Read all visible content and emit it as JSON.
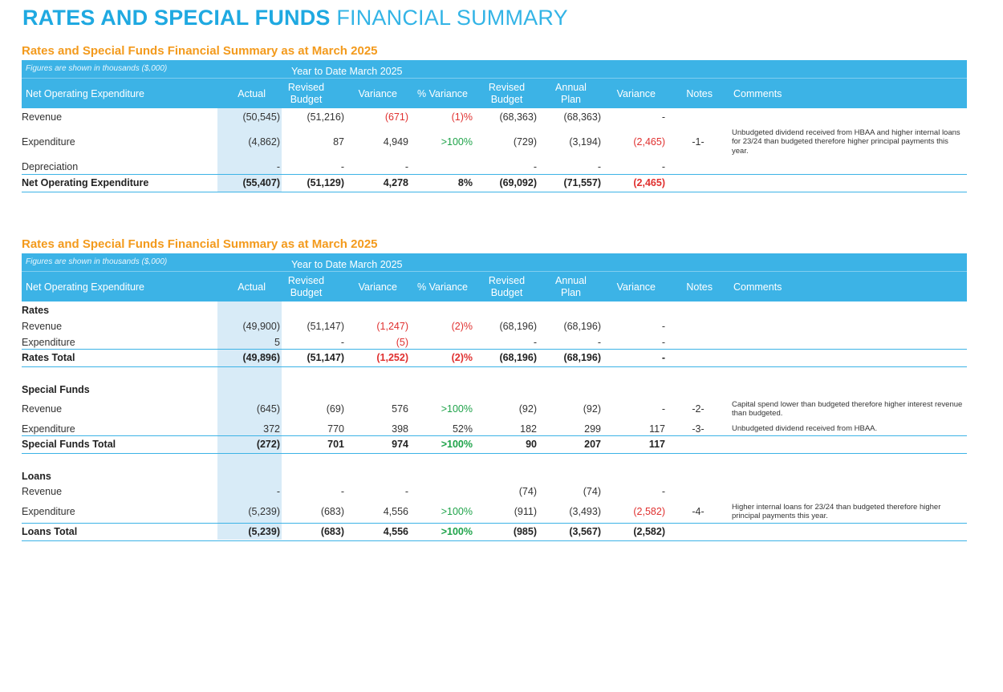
{
  "page_title": {
    "bold": "RATES AND SPECIAL FUNDS",
    "light": "FINANCIAL SUMMARY"
  },
  "table_header": {
    "note": "Figures are shown in thousands ($,000)",
    "ytd": "Year to Date March 2025",
    "net_op": "Net Operating Expenditure",
    "actual": "Actual",
    "revised_budget_1": "Revised",
    "revised_budget_2": "Budget",
    "variance": "Variance",
    "pct_variance": "% Variance",
    "revised_budget_b1": "Revised",
    "revised_budget_b2": "Budget",
    "annual_plan_1": "Annual",
    "annual_plan_2": "Plan",
    "variance2": "Variance",
    "notes": "Notes",
    "comments": "Comments"
  },
  "colors": {
    "accent": "#3cb3e6",
    "title_orange": "#f39a1c",
    "negative": "#e0302f",
    "positive": "#1fa34a",
    "shade": "#d8ebf7"
  },
  "table1": {
    "title": "Rates and Special Funds Financial Summary as at March 2025",
    "rows": [
      {
        "label": "Revenue",
        "actual": "(50,545)",
        "rb": "(51,216)",
        "var": "(671)",
        "pct": "(1)%",
        "rb2": "(68,363)",
        "ap": "(68,363)",
        "var2": "-",
        "notes": "",
        "comment": ""
      },
      {
        "label": "Expenditure",
        "actual": "(4,862)",
        "rb": "87",
        "var": "4,949",
        "pct": ">100%",
        "rb2": "(729)",
        "ap": "(3,194)",
        "var2": "(2,465)",
        "notes": "-1-",
        "comment": "Unbudgeted dividend received from HBAA and higher internal loans for 23/24 than budgeted therefore higher principal payments this year."
      },
      {
        "label": "Depreciation",
        "actual": "-",
        "rb": "-",
        "var": "-",
        "pct": "",
        "rb2": "-",
        "ap": "-",
        "var2": "-",
        "notes": "",
        "comment": ""
      },
      {
        "label": "Net Operating Expenditure",
        "actual": "(55,407)",
        "rb": "(51,129)",
        "var": "4,278",
        "pct": "8%",
        "rb2": "(69,092)",
        "ap": "(71,557)",
        "var2": "(2,465)",
        "notes": "",
        "comment": ""
      }
    ]
  },
  "table2": {
    "title": "Rates and Special Funds Financial Summary as at March 2025",
    "rows": [
      {
        "label": "Rates",
        "actual": "",
        "rb": "",
        "var": "",
        "pct": "",
        "rb2": "",
        "ap": "",
        "var2": "",
        "notes": "",
        "comment": ""
      },
      {
        "label": "Revenue",
        "actual": "(49,900)",
        "rb": "(51,147)",
        "var": "(1,247)",
        "pct": "(2)%",
        "rb2": "(68,196)",
        "ap": "(68,196)",
        "var2": "-",
        "notes": "",
        "comment": ""
      },
      {
        "label": "Expenditure",
        "actual": "5",
        "rb": "-",
        "var": "(5)",
        "pct": "",
        "rb2": "-",
        "ap": "-",
        "var2": "-",
        "notes": "",
        "comment": ""
      },
      {
        "label": "Rates Total",
        "actual": "(49,896)",
        "rb": "(51,147)",
        "var": "(1,252)",
        "pct": "(2)%",
        "rb2": "(68,196)",
        "ap": "(68,196)",
        "var2": "-",
        "notes": "",
        "comment": ""
      },
      {
        "label": "Special Funds",
        "actual": "",
        "rb": "",
        "var": "",
        "pct": "",
        "rb2": "",
        "ap": "",
        "var2": "",
        "notes": "",
        "comment": ""
      },
      {
        "label": "Revenue",
        "actual": "(645)",
        "rb": "(69)",
        "var": "576",
        "pct": ">100%",
        "rb2": "(92)",
        "ap": "(92)",
        "var2": "-",
        "notes": "-2-",
        "comment": "Capital spend lower than budgeted therefore higher interest revenue than budgeted."
      },
      {
        "label": "Expenditure",
        "actual": "372",
        "rb": "770",
        "var": "398",
        "pct": "52%",
        "rb2": "182",
        "ap": "299",
        "var2": "117",
        "notes": "-3-",
        "comment": "Unbudgeted dividend received from HBAA."
      },
      {
        "label": "Special Funds Total",
        "actual": "(272)",
        "rb": "701",
        "var": "974",
        "pct": ">100%",
        "rb2": "90",
        "ap": "207",
        "var2": "117",
        "notes": "",
        "comment": ""
      },
      {
        "label": "Loans",
        "actual": "",
        "rb": "",
        "var": "",
        "pct": "",
        "rb2": "",
        "ap": "",
        "var2": "",
        "notes": "",
        "comment": ""
      },
      {
        "label": "Revenue",
        "actual": "-",
        "rb": "-",
        "var": "-",
        "pct": "",
        "rb2": "(74)",
        "ap": "(74)",
        "var2": "-",
        "notes": "",
        "comment": ""
      },
      {
        "label": "Expenditure",
        "actual": "(5,239)",
        "rb": "(683)",
        "var": "4,556",
        "pct": ">100%",
        "rb2": "(911)",
        "ap": "(3,493)",
        "var2": "(2,582)",
        "notes": "-4-",
        "comment": "Higher internal loans for 23/24 than budgeted therefore higher principal payments this year."
      },
      {
        "label": "Loans Total",
        "actual": "(5,239)",
        "rb": "(683)",
        "var": "4,556",
        "pct": ">100%",
        "rb2": "(985)",
        "ap": "(3,567)",
        "var2": "(2,582)",
        "notes": "",
        "comment": ""
      }
    ]
  }
}
